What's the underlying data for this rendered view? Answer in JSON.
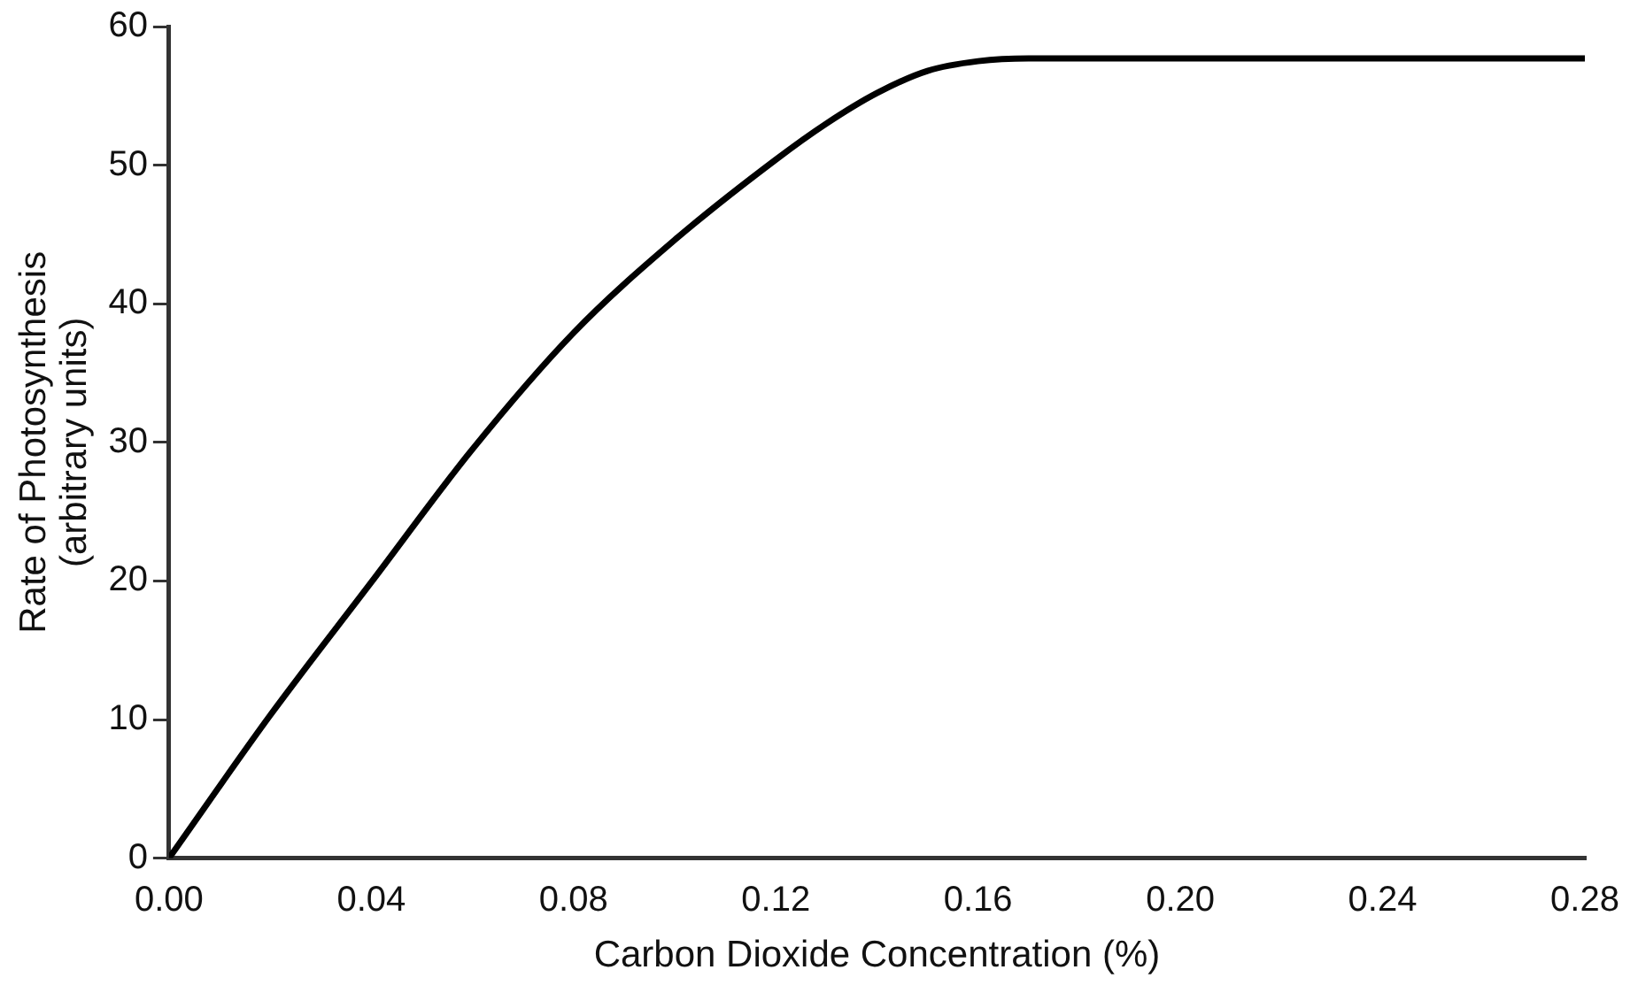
{
  "chart_data": {
    "type": "line",
    "xlabel": "Carbon Dioxide Concentration (%)",
    "ylabel": "Rate of Photosynthesis\n(arbitrary units)",
    "x": [
      0,
      0.02,
      0.04,
      0.06,
      0.08,
      0.1,
      0.12,
      0.13,
      0.14,
      0.15,
      0.16,
      0.17,
      0.28
    ],
    "series": [
      {
        "color": "#000000",
        "values": [
          0,
          10.3,
          19.9,
          29.5,
          37.9,
          44.6,
          50.4,
          53,
          55.2,
          56.8,
          57.5,
          57.7,
          57.7
        ]
      }
    ],
    "xlim": [
      0,
      0.28
    ],
    "xticks": [
      {
        "value": 0,
        "label": "0.00"
      },
      {
        "value": 0.04,
        "label": "0.04"
      },
      {
        "value": 0.08,
        "label": "0.08"
      },
      {
        "value": 0.12,
        "label": "0.12"
      },
      {
        "value": 0.16,
        "label": "0.16"
      },
      {
        "value": 0.2,
        "label": "0.20"
      },
      {
        "value": 0.24,
        "label": "0.24"
      },
      {
        "value": 0.28,
        "label": "0.28"
      }
    ],
    "ylim": [
      0,
      60
    ],
    "yticks": [
      0,
      10,
      20,
      30,
      40,
      50,
      60
    ],
    "grid": false,
    "legend": false,
    "marker": "none",
    "line_style": "solid"
  }
}
